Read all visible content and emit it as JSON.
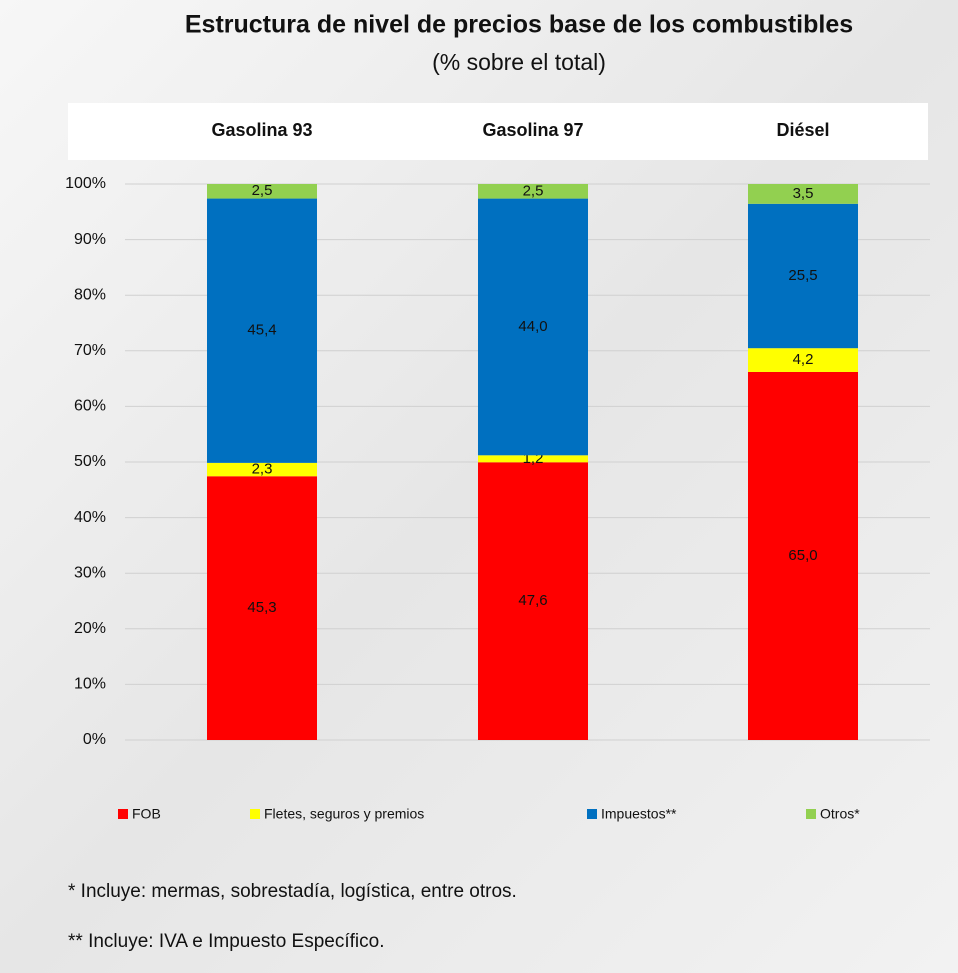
{
  "chart_data": {
    "type": "bar",
    "stack": "percent",
    "title": "Estructura de nivel de precios base de los combustibles",
    "subtitle": "(% sobre el total)",
    "categories": [
      "Gasolina 93",
      "Gasolina 97",
      "Diésel"
    ],
    "series": [
      {
        "name": "FOB",
        "color": "#ff0000",
        "values": [
          45.3,
          47.6,
          65.0
        ],
        "value_labels": [
          "45,3",
          "47,6",
          "65,0"
        ]
      },
      {
        "name": "Fletes, seguros y premios",
        "color": "#ffff00",
        "values": [
          2.3,
          1.2,
          4.2
        ],
        "value_labels": [
          "2,3",
          "1,2",
          "4,2"
        ]
      },
      {
        "name": "Impuestos**",
        "color": "#0070c0",
        "values": [
          45.4,
          44.0,
          25.5
        ],
        "value_labels": [
          "45,4",
          "44,0",
          "25,5"
        ]
      },
      {
        "name": "Otros*",
        "color": "#92d050",
        "values": [
          2.5,
          2.5,
          3.5
        ],
        "value_labels": [
          "2,5",
          "2,5",
          "3,5"
        ]
      }
    ],
    "ylim": [
      0,
      100
    ],
    "yticks": [
      {
        "value": 0,
        "label": "0%"
      },
      {
        "value": 10,
        "label": "10%"
      },
      {
        "value": 20,
        "label": "20%"
      },
      {
        "value": 30,
        "label": "30%"
      },
      {
        "value": 40,
        "label": "40%"
      },
      {
        "value": 50,
        "label": "50%"
      },
      {
        "value": 60,
        "label": "60%"
      },
      {
        "value": 70,
        "label": "70%"
      },
      {
        "value": 80,
        "label": "80%"
      },
      {
        "value": 90,
        "label": "90%"
      },
      {
        "value": 100,
        "label": "100%"
      }
    ],
    "grid": true,
    "legend": "bottom",
    "notes": [
      "* Incluye: mermas, sobrestadía, logística, entre otros.",
      "** Incluye: IVA e Impuesto Específico."
    ]
  }
}
